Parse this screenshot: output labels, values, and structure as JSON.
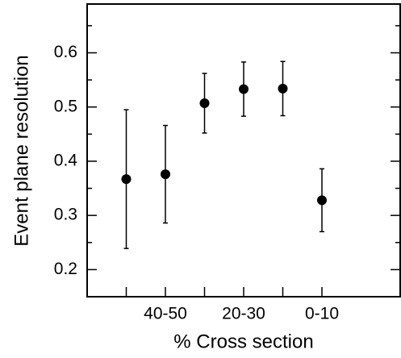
{
  "chart_data": {
    "type": "errorbar",
    "x_label": "% Cross section",
    "y_label": "Event plane resolution",
    "categories": [
      null,
      "40-50",
      null,
      "20-30",
      null,
      "0-10"
    ],
    "values": [
      0.367,
      0.376,
      0.507,
      0.533,
      0.534,
      0.328
    ],
    "errors": [
      0.128,
      0.09,
      0.055,
      0.05,
      0.05,
      0.058
    ],
    "color": "#000000",
    "ylim": [
      0.15,
      0.69
    ],
    "yticks": [
      0.2,
      0.3,
      0.4,
      0.5,
      0.6
    ],
    "yticks_minor": [
      0.25,
      0.35,
      0.45,
      0.55,
      0.65
    ]
  }
}
